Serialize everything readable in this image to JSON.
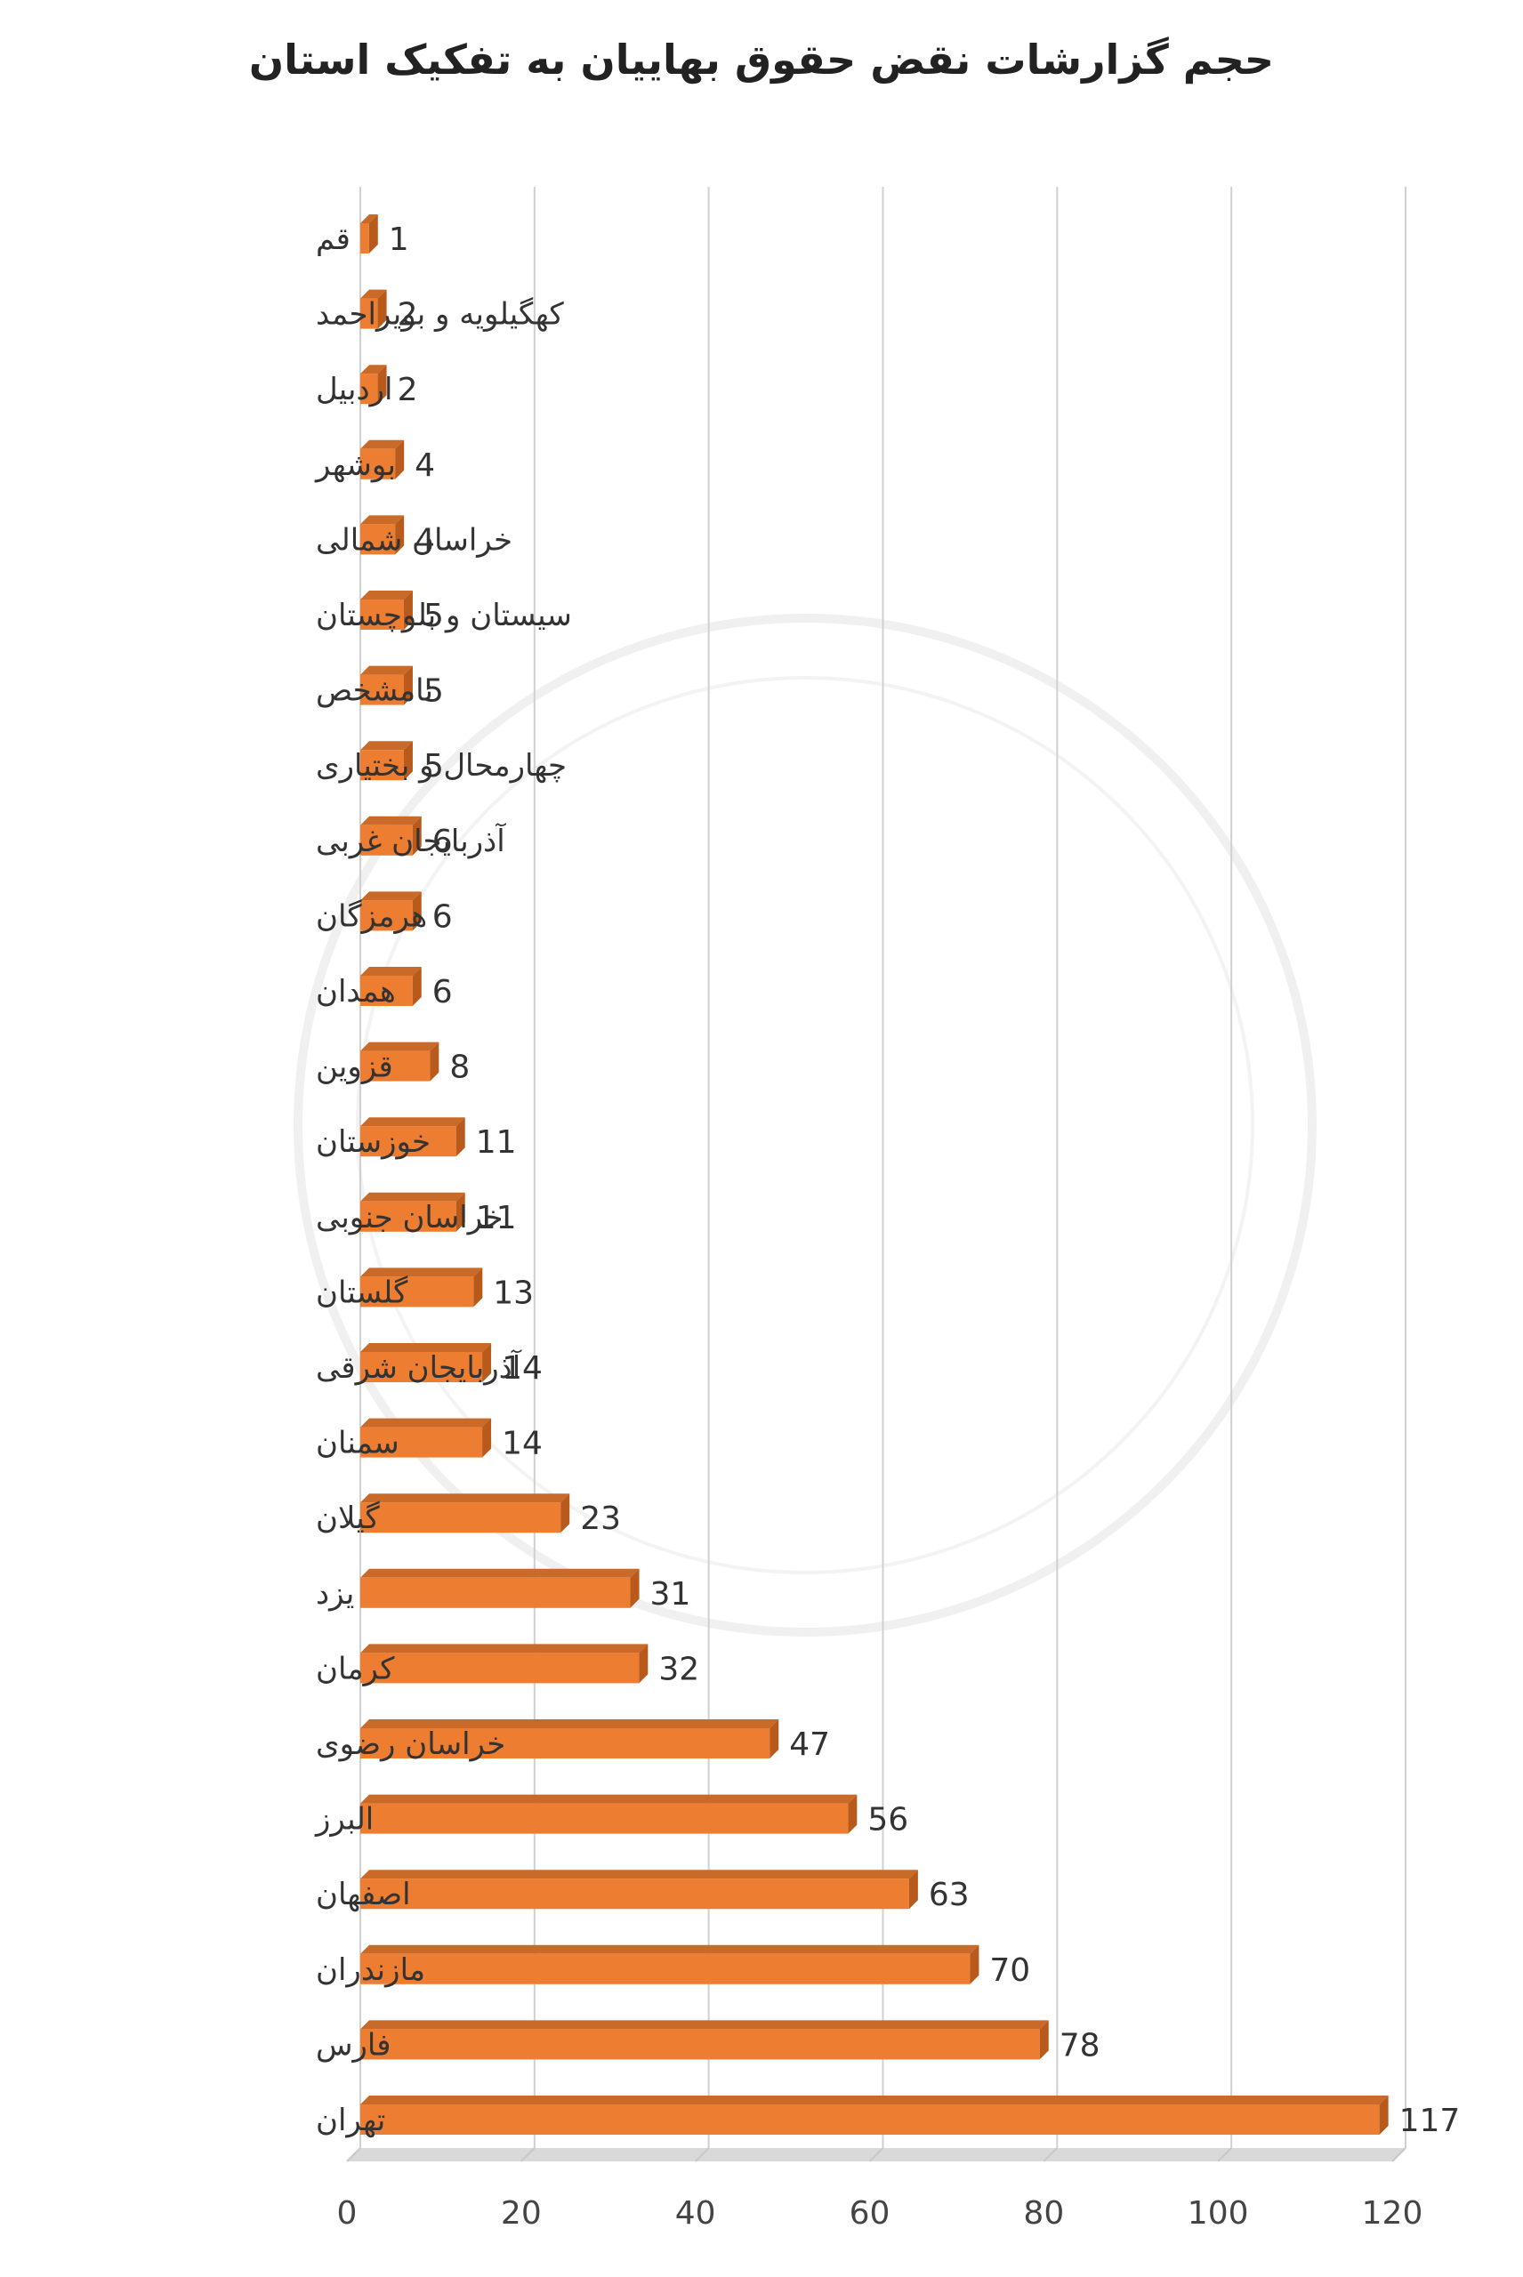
{
  "chart_data": {
    "type": "bar",
    "orientation": "horizontal",
    "title": "حجم گزارشات نقض حقوق بهاییان به تفکیک استان",
    "categories": [
      "قم",
      "کهگیلویه و بویراحمد",
      "اردبیل",
      "بوشهر",
      "خراسان شمالی",
      "سیستان و بلوچستان",
      "نامشخص",
      "چهارمحال و بختیاری",
      "آذربایجان غربی",
      "هرمزگان",
      "همدان",
      "قزوین",
      "خوزستان",
      "خراسان جنوبی",
      "گلستان",
      "آذربایجان شرقی",
      "سمنان",
      "گیلان",
      "یزد",
      "کرمان",
      "خراسان رضوی",
      "البرز",
      "اصفهان",
      "مازندران",
      "فارس",
      "تهران"
    ],
    "values": [
      1,
      2,
      2,
      4,
      4,
      5,
      5,
      5,
      6,
      6,
      6,
      8,
      11,
      11,
      13,
      14,
      14,
      23,
      31,
      32,
      47,
      56,
      63,
      70,
      78,
      117
    ],
    "xlim": [
      0,
      120
    ],
    "xticks": [
      0,
      20,
      40,
      60,
      80,
      100,
      120
    ],
    "grid": true,
    "bar_color": "#ED7D31",
    "bar_shade_color": "#B85A1C"
  }
}
